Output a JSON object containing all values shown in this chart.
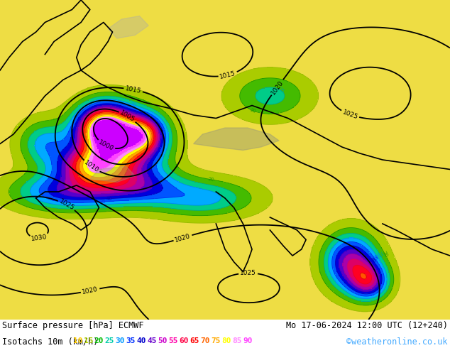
{
  "title_left": "Surface pressure [hPa] ECMWF",
  "title_right": "Mo 17-06-2024 12:00 UTC (12+240)",
  "subtitle_left": "Isotachs 10m (km/h)",
  "subtitle_right": "©weatheronline.co.uk",
  "isotach_values": [
    10,
    15,
    20,
    25,
    30,
    35,
    40,
    45,
    50,
    55,
    60,
    65,
    70,
    75,
    80,
    85,
    90
  ],
  "legend_isotach_colors": [
    "#ffcc00",
    "#aacc00",
    "#00bb00",
    "#00ccaa",
    "#0099ff",
    "#0033ff",
    "#0000cc",
    "#6600cc",
    "#cc00cc",
    "#ff00aa",
    "#ff0044",
    "#ff0000",
    "#ff6600",
    "#ffaa00",
    "#ffff00",
    "#ff88ff",
    "#ff44ff"
  ],
  "bg_color": "#ffffff",
  "map_bg_light": "#e0f0d0",
  "map_bg_green": "#88cc44",
  "title_fontsize": 8.5,
  "subtitle_fontsize": 8.5,
  "legend_fontsize": 8.0,
  "copyright_color": "#44aaff",
  "isotach_bounds": [
    0,
    10,
    15,
    20,
    25,
    30,
    35,
    40,
    45,
    50,
    55,
    60,
    65,
    70,
    75,
    80,
    85,
    90,
    200
  ],
  "isotach_fill_colors": [
    "#ddeebb",
    "#eedd44",
    "#aacc00",
    "#44bb00",
    "#00cc88",
    "#00aaff",
    "#0055ff",
    "#0000dd",
    "#5500cc",
    "#aa00aa",
    "#dd0066",
    "#ff0022",
    "#ff5500",
    "#ffaa00",
    "#ffff00",
    "#ff88ff",
    "#ff44ff",
    "#cc00ff"
  ],
  "isobar_levels": [
    995,
    1000,
    1005,
    1010,
    1015,
    1020,
    1025,
    1030,
    1035
  ],
  "isobar_color": "#000000",
  "isobar_linewidth": 1.3
}
